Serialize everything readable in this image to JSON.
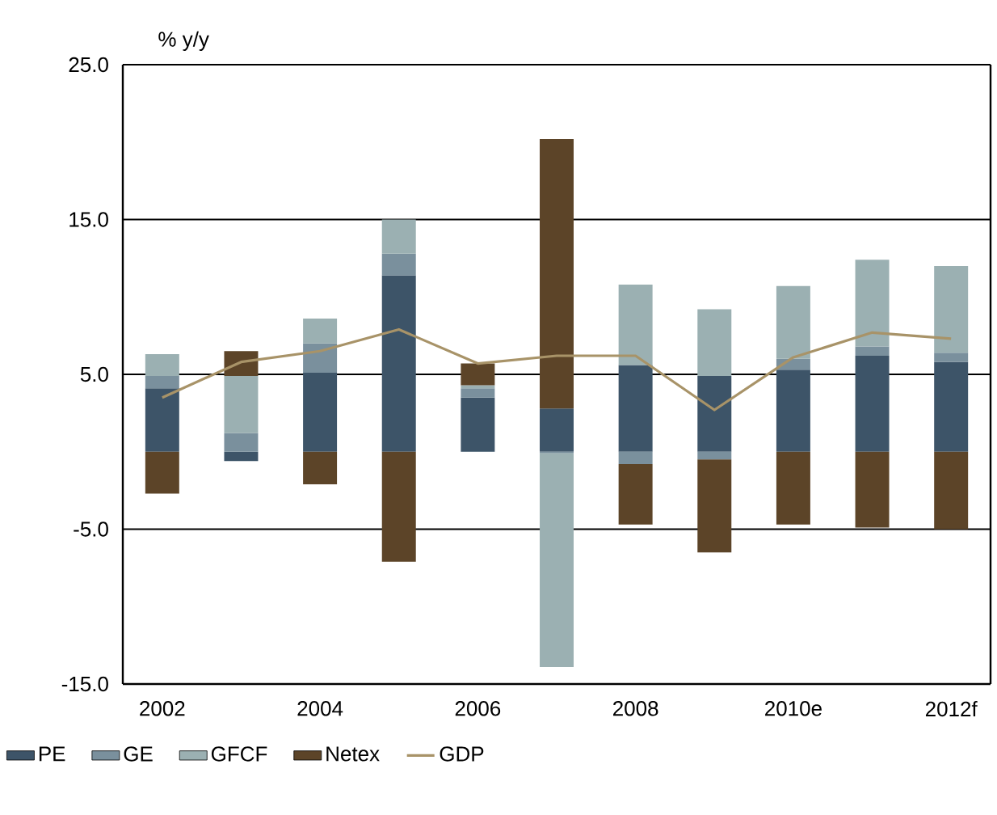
{
  "chart_data": {
    "type": "bar",
    "stacked": true,
    "ylabel": "% y/y",
    "categories": [
      "2002",
      null,
      "2004",
      null,
      "2006",
      null,
      "2008",
      null,
      "2010e",
      null,
      "2012f"
    ],
    "series": [
      {
        "name": "PE",
        "color": "#3d5468",
        "values": [
          4.1,
          -0.6,
          5.1,
          11.4,
          3.5,
          2.8,
          5.6,
          4.9,
          5.3,
          6.2,
          5.8
        ]
      },
      {
        "name": "GE",
        "color": "#7a909d",
        "values": [
          0.8,
          1.2,
          1.9,
          1.4,
          0.6,
          -0.1,
          -0.8,
          -0.5,
          0.7,
          0.6,
          0.6
        ]
      },
      {
        "name": "GFCF",
        "color": "#9bb0b2",
        "values": [
          1.4,
          3.7,
          1.6,
          2.2,
          0.2,
          -13.8,
          5.2,
          4.3,
          4.7,
          5.6,
          5.6
        ]
      },
      {
        "name": "Netex",
        "color": "#5c4428",
        "values": [
          -2.7,
          1.6,
          -2.1,
          -7.1,
          1.4,
          17.4,
          -3.9,
          -6.0,
          -4.7,
          -4.9,
          -5.0
        ]
      },
      {
        "name": "GDP",
        "type": "line",
        "color": "#a89368",
        "values": [
          3.5,
          5.8,
          6.5,
          7.9,
          5.7,
          6.2,
          6.2,
          2.7,
          6.1,
          7.7,
          7.3
        ]
      }
    ],
    "ylim": [
      -15,
      25
    ],
    "yticks": [
      {
        "value": -15,
        "label": "-15.0"
      },
      {
        "value": -5,
        "label": "-5.0"
      },
      {
        "value": 5,
        "label": "5.0"
      },
      {
        "value": 15,
        "label": "15.0"
      },
      {
        "value": 25,
        "label": "25.0"
      }
    ],
    "grid": "y",
    "legend": "bottom",
    "marker": "none"
  }
}
